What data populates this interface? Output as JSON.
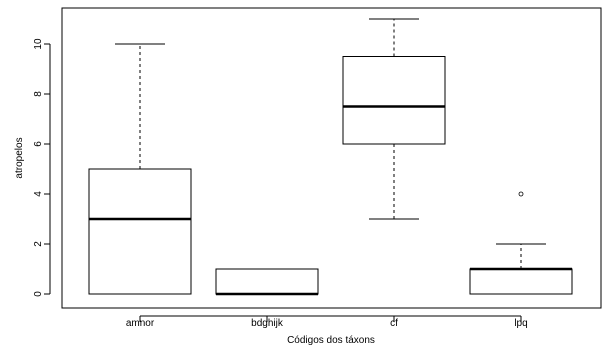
{
  "chart_data": {
    "type": "boxplot",
    "title": "",
    "xlabel": "Códigos dos táxons",
    "ylabel": "atropelos",
    "ylim": [
      0,
      11
    ],
    "yticks": [
      0,
      2,
      4,
      6,
      8,
      10
    ],
    "categories": [
      "amnor",
      "bdghijk",
      "cf",
      "lpq"
    ],
    "boxes": [
      {
        "category": "amnor",
        "whisker_low": 0,
        "q1": 0,
        "median": 3,
        "q3": 5,
        "whisker_high": 10,
        "outliers": []
      },
      {
        "category": "bdghijk",
        "whisker_low": 0,
        "q1": 0,
        "median": 0,
        "q3": 1,
        "whisker_high": 1,
        "outliers": []
      },
      {
        "category": "cf",
        "whisker_low": 3,
        "q1": 6,
        "median": 7.5,
        "q3": 9.5,
        "whisker_high": 11,
        "outliers": []
      },
      {
        "category": "lpq",
        "whisker_low": 0,
        "q1": 0,
        "median": 1,
        "q3": 1,
        "whisker_high": 2,
        "outliers": [
          4
        ]
      }
    ],
    "grid": false,
    "colors": {
      "box_fill": "#ffffff",
      "stroke": "#000000"
    }
  }
}
